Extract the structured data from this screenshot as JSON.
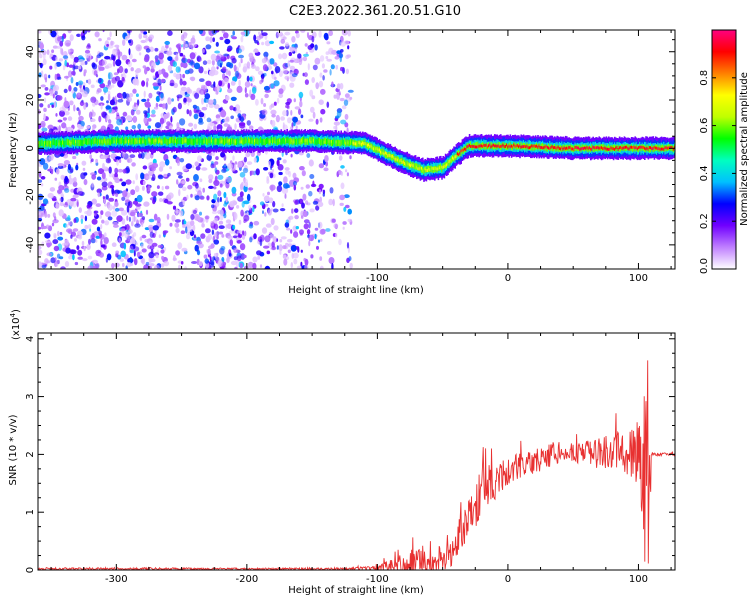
{
  "title": "C2E3.2022.361.20.51.G10",
  "chart_data": [
    {
      "type": "heatmap",
      "xlabel": "Height of straight line (km)",
      "ylabel": "Frequency (Hz)",
      "xlim": [
        -360,
        128
      ],
      "ylim": [
        -50,
        49
      ],
      "xticks": [
        -300,
        -200,
        -100,
        0,
        100
      ],
      "yticks": [
        -40,
        -20,
        0,
        20,
        40
      ],
      "colorbar": {
        "label": "Normalized spectral amplitude",
        "range": [
          0.0,
          1.0
        ],
        "ticks": [
          "0.0",
          "0.2",
          "0.4",
          "0.6",
          "0.8"
        ],
        "colors": [
          "#ffffff",
          "#c080ff",
          "#7000ff",
          "#0000ff",
          "#00c0ff",
          "#00ffc0",
          "#00ff00",
          "#c0ff00",
          "#ffff00",
          "#ff8000",
          "#ff0000",
          "#ff0080"
        ]
      },
      "ridge": {
        "x": [
          -360,
          -300,
          -200,
          -150,
          -110,
          -95,
          -80,
          -65,
          -50,
          -40,
          -30,
          -20,
          0,
          50,
          100,
          128
        ],
        "y": [
          2,
          3,
          3,
          3,
          2,
          -2,
          -6,
          -9,
          -8,
          -3,
          1,
          1,
          1,
          0,
          0,
          0
        ]
      },
      "noise_extent_x": [
        -360,
        -120
      ]
    },
    {
      "type": "line",
      "xlabel": "Height of straight line (km)",
      "ylabel": "SNR (10 * v/v)",
      "yunit": "(x10",
      "yunit_exp": "4",
      "yunit_close": ")",
      "xlim": [
        -360,
        128
      ],
      "ylim": [
        0,
        4.1
      ],
      "xticks": [
        -300,
        -200,
        -100,
        0,
        100
      ],
      "yticks": [
        0,
        1,
        2,
        3,
        4
      ],
      "color": "#e83030",
      "envelope": {
        "x": [
          -360,
          -300,
          -200,
          -120,
          -100,
          -80,
          -65,
          -55,
          -45,
          -30,
          -20,
          -10,
          0,
          20,
          35,
          45,
          70,
          90,
          100,
          104,
          107,
          110,
          128
        ],
        "base": [
          0.02,
          0.02,
          0.02,
          0.02,
          0.03,
          0.08,
          0.12,
          0.1,
          0.2,
          0.9,
          1.3,
          1.5,
          1.7,
          1.85,
          2.0,
          2.0,
          2.0,
          2.0,
          1.9,
          1.5,
          0.8,
          2.0,
          2.0
        ],
        "amp": [
          0.03,
          0.03,
          0.02,
          0.03,
          0.05,
          0.3,
          0.45,
          0.2,
          0.3,
          0.6,
          0.6,
          0.5,
          0.35,
          0.3,
          0.3,
          0.15,
          0.4,
          0.5,
          1.0,
          1.8,
          3.0,
          0.05,
          0.03
        ]
      }
    }
  ]
}
